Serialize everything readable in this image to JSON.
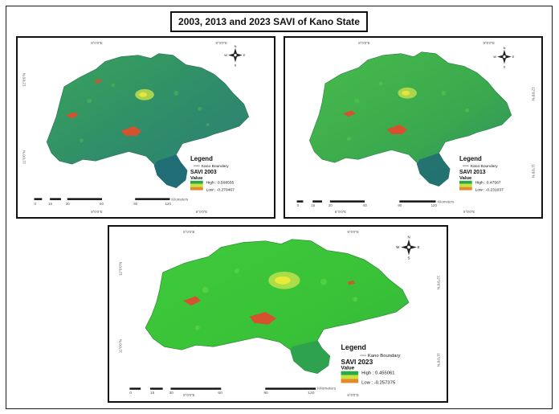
{
  "figure_title": "2003, 2013 and 2023 SAVI of Kano State",
  "legend_common": {
    "heading": "Legend",
    "boundary_label": "Kano Boundary",
    "value_label": "Value"
  },
  "coordinates": {
    "top_left_lon": "8°0'0\"E",
    "top_right_lon": "9°0'0\"E",
    "bottom_left_lon": "8°0'0\"E",
    "bottom_right_lon": "9°0'0\"E",
    "upper_lat": "12°0'0\"N",
    "lower_lat": "11°0'0\"N"
  },
  "compass": {
    "n": "N",
    "s": "S",
    "e": "E",
    "w": "W"
  },
  "scale_bar": {
    "ticks": [
      "0",
      "15",
      "30",
      "60",
      "90",
      "120"
    ],
    "unit": "Kilometers"
  },
  "maps": [
    {
      "id": "2003",
      "layer_title": "SAVI 2003",
      "high": "High : 0.508555",
      "low": "Low : -0.270467"
    },
    {
      "id": "2013",
      "layer_title": "SAVI 2013",
      "high": "High : 0.47567",
      "low": "Low : -0.231037"
    },
    {
      "id": "2023",
      "layer_title": "SAVI 2023",
      "high": "High : 0.455061",
      "low": "Low : -0.257375"
    }
  ],
  "colors": {
    "veg_2003": "#2f8c6a",
    "veg_2013": "#3aa84e",
    "veg_2023": "#39c238",
    "south_lobe_dark": "#1f6878",
    "urban_yellow": "#e6e63a",
    "bare_red": "#d6512e",
    "frame": "#111111"
  }
}
